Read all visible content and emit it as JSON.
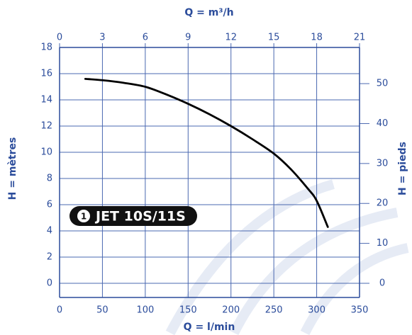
{
  "chart_data": {
    "type": "line",
    "x2label": "Q = m³/h",
    "xlabel": "Q = l/min",
    "ylabel": "H = mètres",
    "y2label": "H = pieds",
    "annotation_number": "1",
    "annotation": "JET 10S/11S",
    "x": [
      30,
      50,
      75,
      100,
      125,
      150,
      175,
      200,
      225,
      250,
      270,
      290,
      300,
      313
    ],
    "series": [
      {
        "name": "JET 10S/11S",
        "color": "#000000",
        "values": [
          15.6,
          15.5,
          15.3,
          15.0,
          14.4,
          13.7,
          12.9,
          12.0,
          11.0,
          9.9,
          8.7,
          7.2,
          6.3,
          4.3
        ]
      }
    ],
    "xlim": [
      0,
      350
    ],
    "xticks": [
      0,
      50,
      100,
      150,
      200,
      250,
      300,
      350
    ],
    "x2lim": [
      0,
      21
    ],
    "x2ticks": [
      0,
      3,
      6,
      9,
      12,
      15,
      18,
      21
    ],
    "ylim": [
      0,
      18
    ],
    "yticks": [
      0,
      2,
      4,
      6,
      8,
      10,
      12,
      14,
      16,
      18
    ],
    "y2lim": [
      0,
      59.06
    ],
    "y2ticks": [
      0,
      10,
      20,
      30,
      40,
      50
    ],
    "grid": true,
    "grid_color": "#4a68b0",
    "axis_color": "#2b4c9b"
  }
}
